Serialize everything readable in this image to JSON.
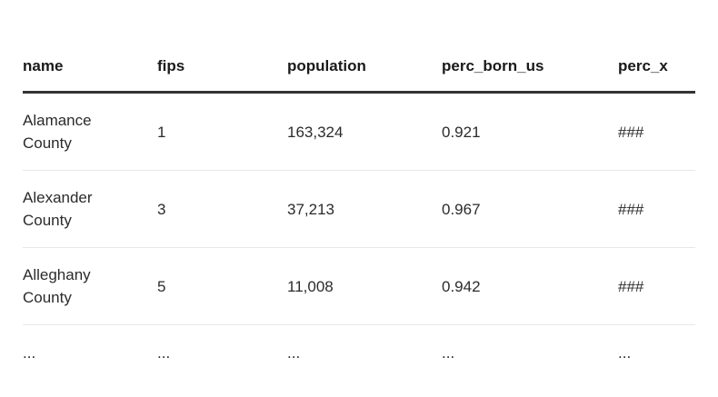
{
  "table": {
    "columns": [
      {
        "key": "name",
        "label": "name"
      },
      {
        "key": "fips",
        "label": "fips"
      },
      {
        "key": "population",
        "label": "population"
      },
      {
        "key": "perc_born_us",
        "label": "perc_born_us"
      },
      {
        "key": "perc_x",
        "label": "perc_x"
      }
    ],
    "rows": [
      {
        "cells": [
          "Alamance County",
          "1",
          "163,324",
          "0.921",
          "###"
        ]
      },
      {
        "cells": [
          "Alexander County",
          "3",
          "37,213",
          "0.967",
          "###"
        ]
      },
      {
        "cells": [
          "Alleghany County",
          "5",
          "11,008",
          "0.942",
          "###"
        ]
      },
      {
        "cells": [
          "...",
          "...",
          "...",
          "...",
          "..."
        ]
      }
    ]
  },
  "chart_data": {
    "type": "table",
    "columns": [
      "name",
      "fips",
      "population",
      "perc_born_us",
      "perc_x"
    ],
    "rows": [
      [
        "Alamance County",
        1,
        163324,
        0.921,
        "###"
      ],
      [
        "Alexander County",
        3,
        37213,
        0.967,
        "###"
      ],
      [
        "Alleghany County",
        5,
        11008,
        0.942,
        "###"
      ],
      [
        "...",
        "...",
        "...",
        "...",
        "..."
      ]
    ],
    "notes": "perc_x column values truncated and shown as ### overflow marker; final row is an ellipsis continuation row"
  },
  "colors": {
    "background": "#ffffff",
    "header_text": "#1a1a1a",
    "body_text": "#2b2b2b",
    "header_rule": "#333333",
    "row_divider": "#e8e8e8"
  }
}
